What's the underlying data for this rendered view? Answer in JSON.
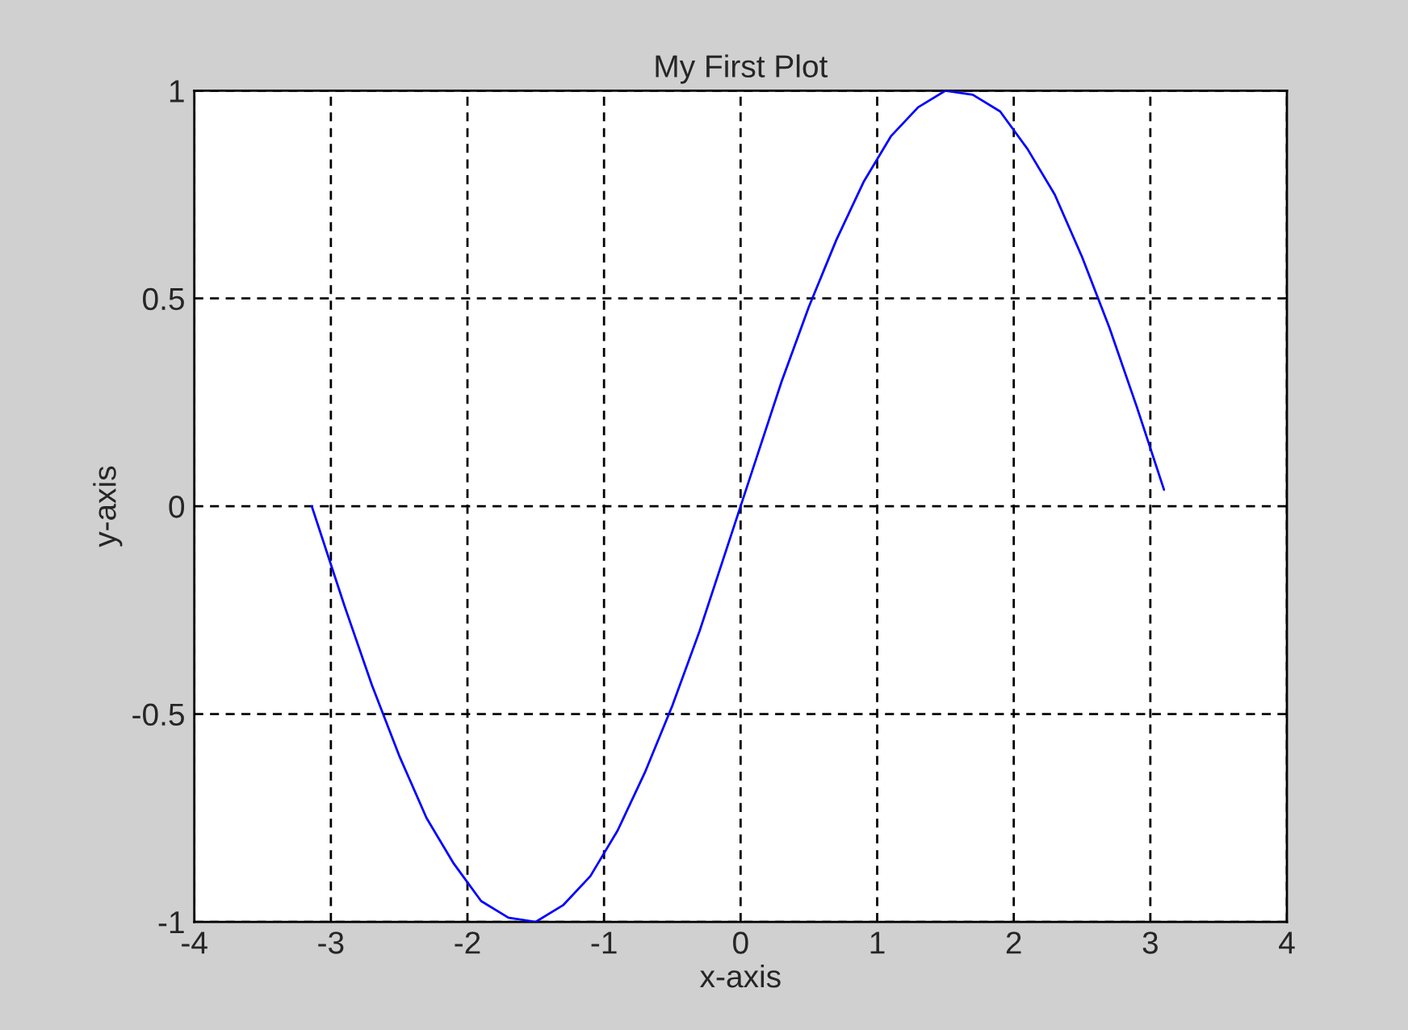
{
  "chart_data": {
    "type": "line",
    "title": "My First Plot",
    "xlabel": "x-axis",
    "ylabel": "y-axis",
    "series": [
      {
        "color": "#0000ff",
        "x": [
          -3.14,
          -3.1,
          -2.9,
          -2.7,
          -2.5,
          -2.3,
          -2.1,
          -1.9,
          -1.7,
          -1.5,
          -1.3,
          -1.1,
          -0.9,
          -0.7,
          -0.5,
          -0.3,
          -0.1,
          0.1,
          0.3,
          0.5,
          0.7,
          0.9,
          1.1,
          1.3,
          1.5,
          1.7,
          1.9,
          2.1,
          2.3,
          2.5,
          2.7,
          2.9,
          3.1
        ],
        "values": [
          0.0,
          -0.04,
          -0.24,
          -0.43,
          -0.6,
          -0.75,
          -0.86,
          -0.95,
          -0.99,
          -1.0,
          -0.96,
          -0.89,
          -0.78,
          -0.64,
          -0.48,
          -0.3,
          -0.1,
          0.1,
          0.3,
          0.48,
          0.64,
          0.78,
          0.89,
          0.96,
          1.0,
          0.99,
          0.95,
          0.86,
          0.75,
          0.6,
          0.43,
          0.24,
          0.04
        ]
      }
    ],
    "xlim": [
      -4,
      4
    ],
    "xticks": [
      -4,
      -3,
      -2,
      -1,
      0,
      1,
      2,
      3,
      4
    ],
    "ylim": [
      -1,
      1
    ],
    "yticks": [
      -1,
      -0.5,
      0,
      0.5,
      1
    ],
    "grid": true,
    "legend": false,
    "marker": "none",
    "line_style": "solid"
  }
}
